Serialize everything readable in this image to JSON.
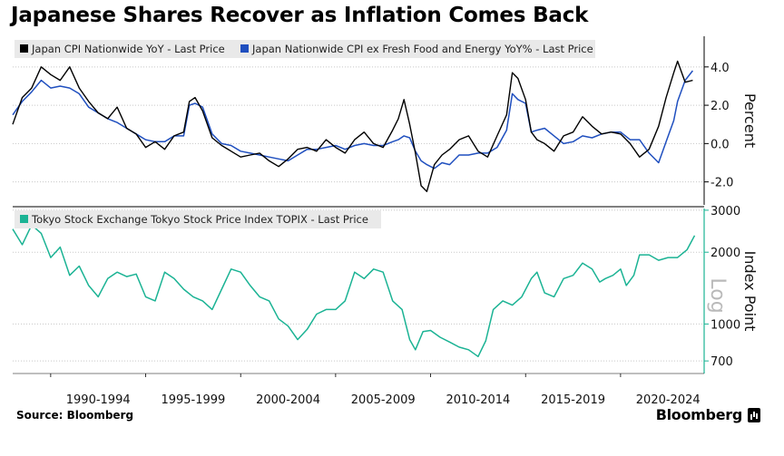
{
  "header": {
    "title": "Japanese Shares Recover as Inflation Comes Back"
  },
  "footer": {
    "source": "Source: Bloomberg",
    "brand": "Bloomberg"
  },
  "colors": {
    "cpi": "#000000",
    "core_cpi": "#1f4fbf",
    "topix": "#1bb394",
    "grid": "#c8c8c8",
    "legend_bg": "#e9e9e9"
  },
  "chart_data": [
    {
      "type": "line",
      "ylabel": "Percent",
      "ylim": [
        -3.2,
        5.6
      ],
      "yticks": [
        -2,
        0,
        2,
        4
      ],
      "ytick_labels": [
        "-2.0",
        "0.0",
        "2.0",
        "4.0"
      ],
      "grid": true,
      "legend": "top-left",
      "series": [
        {
          "name": "Japan CPI Nationwide YoY - Last Price",
          "x": [
            1988.0,
            1988.5,
            1989.0,
            1989.5,
            1990.0,
            1990.5,
            1991.0,
            1991.5,
            1992.0,
            1992.5,
            1993.0,
            1993.5,
            1994.0,
            1994.5,
            1995.0,
            1995.5,
            1996.0,
            1996.5,
            1997.0,
            1997.3,
            1997.6,
            1998.0,
            1998.5,
            1999.0,
            1999.5,
            2000.0,
            2000.5,
            2001.0,
            2001.5,
            2002.0,
            2002.5,
            2003.0,
            2003.5,
            2004.0,
            2004.5,
            2005.0,
            2005.5,
            2006.0,
            2006.5,
            2007.0,
            2007.5,
            2008.0,
            2008.3,
            2008.6,
            2008.9,
            2009.2,
            2009.5,
            2009.8,
            2010.2,
            2010.6,
            2011.0,
            2011.5,
            2012.0,
            2012.5,
            2013.0,
            2013.5,
            2014.0,
            2014.3,
            2014.6,
            2015.0,
            2015.3,
            2015.6,
            2016.0,
            2016.5,
            2017.0,
            2017.5,
            2018.0,
            2018.5,
            2019.0,
            2019.5,
            2020.0,
            2020.5,
            2021.0,
            2021.5,
            2022.0,
            2022.4,
            2022.8,
            2023.0,
            2023.4,
            2023.8
          ],
          "y": [
            1.0,
            2.4,
            2.9,
            4.0,
            3.6,
            3.3,
            4.0,
            2.9,
            2.2,
            1.6,
            1.3,
            1.9,
            0.8,
            0.5,
            -0.2,
            0.1,
            -0.3,
            0.4,
            0.6,
            2.2,
            2.4,
            1.7,
            0.3,
            -0.1,
            -0.4,
            -0.7,
            -0.6,
            -0.5,
            -0.9,
            -1.2,
            -0.8,
            -0.3,
            -0.2,
            -0.4,
            0.2,
            -0.2,
            -0.5,
            0.2,
            0.6,
            0.0,
            -0.2,
            0.7,
            1.3,
            2.3,
            1.0,
            -0.5,
            -2.2,
            -2.5,
            -1.1,
            -0.6,
            -0.3,
            0.2,
            0.4,
            -0.4,
            -0.7,
            0.4,
            1.5,
            3.7,
            3.4,
            2.3,
            0.6,
            0.2,
            0.0,
            -0.4,
            0.4,
            0.6,
            1.4,
            0.9,
            0.5,
            0.6,
            0.5,
            0.0,
            -0.7,
            -0.3,
            0.9,
            2.4,
            3.7,
            4.3,
            3.2,
            3.3
          ]
        },
        {
          "name": "Japan Nationwide CPI ex Fresh Food and Energy YoY% - Last Price",
          "x": [
            1988.0,
            1988.5,
            1989.0,
            1989.5,
            1990.0,
            1990.5,
            1991.0,
            1991.5,
            1992.0,
            1992.5,
            1993.0,
            1993.5,
            1994.0,
            1994.5,
            1995.0,
            1995.5,
            1996.0,
            1996.5,
            1997.0,
            1997.3,
            1997.6,
            1998.0,
            1998.5,
            1999.0,
            1999.5,
            2000.0,
            2000.5,
            2001.0,
            2001.5,
            2002.0,
            2002.5,
            2003.0,
            2003.5,
            2004.0,
            2004.5,
            2005.0,
            2005.5,
            2006.0,
            2006.5,
            2007.0,
            2007.5,
            2008.0,
            2008.3,
            2008.6,
            2008.9,
            2009.2,
            2009.5,
            2009.8,
            2010.2,
            2010.6,
            2011.0,
            2011.5,
            2012.0,
            2012.5,
            2013.0,
            2013.5,
            2014.0,
            2014.3,
            2014.6,
            2015.0,
            2015.3,
            2015.6,
            2016.0,
            2016.5,
            2017.0,
            2017.5,
            2018.0,
            2018.5,
            2019.0,
            2019.5,
            2020.0,
            2020.5,
            2021.0,
            2021.5,
            2022.0,
            2022.4,
            2022.8,
            2023.0,
            2023.4,
            2023.8
          ],
          "y": [
            1.5,
            2.2,
            2.7,
            3.3,
            2.9,
            3.0,
            2.9,
            2.6,
            1.9,
            1.6,
            1.3,
            1.1,
            0.8,
            0.5,
            0.2,
            0.1,
            0.1,
            0.4,
            0.4,
            2.0,
            2.1,
            1.9,
            0.5,
            0.0,
            -0.1,
            -0.4,
            -0.5,
            -0.6,
            -0.7,
            -0.8,
            -0.9,
            -0.6,
            -0.3,
            -0.3,
            -0.2,
            -0.1,
            -0.3,
            -0.1,
            0.0,
            -0.1,
            -0.1,
            0.1,
            0.2,
            0.4,
            0.3,
            -0.4,
            -0.9,
            -1.1,
            -1.3,
            -1.0,
            -1.1,
            -0.6,
            -0.6,
            -0.5,
            -0.5,
            -0.2,
            0.7,
            2.6,
            2.3,
            2.1,
            0.6,
            0.7,
            0.8,
            0.4,
            0.0,
            0.1,
            0.4,
            0.3,
            0.5,
            0.6,
            0.6,
            0.2,
            0.2,
            -0.5,
            -1.0,
            0.1,
            1.2,
            2.2,
            3.3,
            3.8
          ]
        }
      ]
    },
    {
      "type": "line",
      "ylabel": "Index Point",
      "scale_note": "Log",
      "log_scale": true,
      "ylim": [
        620,
        3050
      ],
      "yticks": [
        700,
        1000,
        2000,
        3000
      ],
      "ytick_labels": [
        "700",
        "1000",
        "2000",
        "3000"
      ],
      "grid": true,
      "legend": "top-left",
      "xtick_labels": [
        "1990-1994",
        "1995-1999",
        "2000-2004",
        "2005-2009",
        "2010-2014",
        "2015-2019",
        "2020-2024"
      ],
      "series": [
        {
          "name": "Tokyo Stock Exchange Tokyo Stock Price Index TOPIX - Last Price",
          "x": [
            1988.0,
            1988.5,
            1989.0,
            1989.5,
            1990.0,
            1990.5,
            1991.0,
            1991.5,
            1992.0,
            1992.5,
            1993.0,
            1993.5,
            1994.0,
            1994.5,
            1995.0,
            1995.5,
            1996.0,
            1996.5,
            1997.0,
            1997.5,
            1998.0,
            1998.5,
            1999.0,
            1999.5,
            2000.0,
            2000.5,
            2001.0,
            2001.5,
            2002.0,
            2002.5,
            2003.0,
            2003.5,
            2004.0,
            2004.5,
            2005.0,
            2005.5,
            2006.0,
            2006.5,
            2007.0,
            2007.5,
            2008.0,
            2008.5,
            2008.9,
            2009.2,
            2009.6,
            2010.0,
            2010.5,
            2011.0,
            2011.5,
            2012.0,
            2012.5,
            2012.9,
            2013.3,
            2013.8,
            2014.3,
            2014.8,
            2015.3,
            2015.6,
            2016.0,
            2016.5,
            2017.0,
            2017.5,
            2018.0,
            2018.5,
            2018.9,
            2019.2,
            2019.6,
            2020.0,
            2020.3,
            2020.7,
            2021.0,
            2021.5,
            2022.0,
            2022.5,
            2023.0,
            2023.5,
            2023.9
          ],
          "y": [
            2500,
            2150,
            2600,
            2400,
            1900,
            2100,
            1600,
            1750,
            1450,
            1300,
            1550,
            1650,
            1580,
            1620,
            1300,
            1250,
            1650,
            1550,
            1400,
            1300,
            1250,
            1150,
            1400,
            1700,
            1650,
            1450,
            1300,
            1250,
            1050,
            980,
            860,
            950,
            1100,
            1150,
            1150,
            1250,
            1650,
            1550,
            1700,
            1650,
            1250,
            1150,
            860,
            780,
            930,
            940,
            880,
            840,
            800,
            780,
            730,
            850,
            1150,
            1250,
            1200,
            1300,
            1550,
            1650,
            1350,
            1300,
            1550,
            1600,
            1800,
            1700,
            1500,
            1550,
            1600,
            1700,
            1450,
            1600,
            1950,
            1950,
            1850,
            1900,
            1900,
            2050,
            2350
          ]
        }
      ]
    }
  ]
}
